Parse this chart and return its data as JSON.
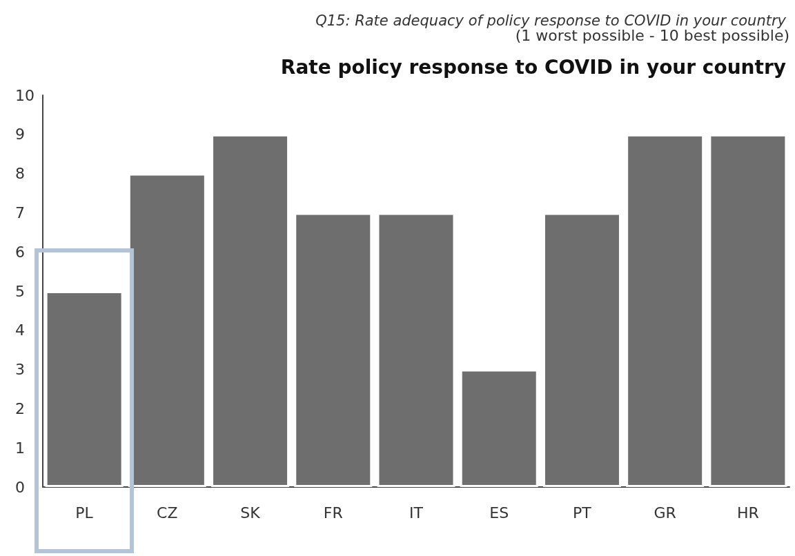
{
  "chart_data": {
    "type": "bar",
    "title": "Rate policy response to COVID in your country",
    "subtitle": "Q15: Rate adequacy of policy response to COVID in your country",
    "annotations": [
      "(1 worst possible - 10 best possible)"
    ],
    "categories": [
      "PL",
      "CZ",
      "SK",
      "FR",
      "IT",
      "ES",
      "PT",
      "GR",
      "HR"
    ],
    "values": [
      5,
      8,
      9,
      7,
      7,
      3,
      7,
      9,
      9
    ],
    "color": "#6e6e6e",
    "ylim": [
      0,
      10
    ],
    "yticks": [
      0,
      1,
      2,
      3,
      4,
      5,
      6,
      7,
      8,
      9,
      10
    ],
    "grid": false
  }
}
